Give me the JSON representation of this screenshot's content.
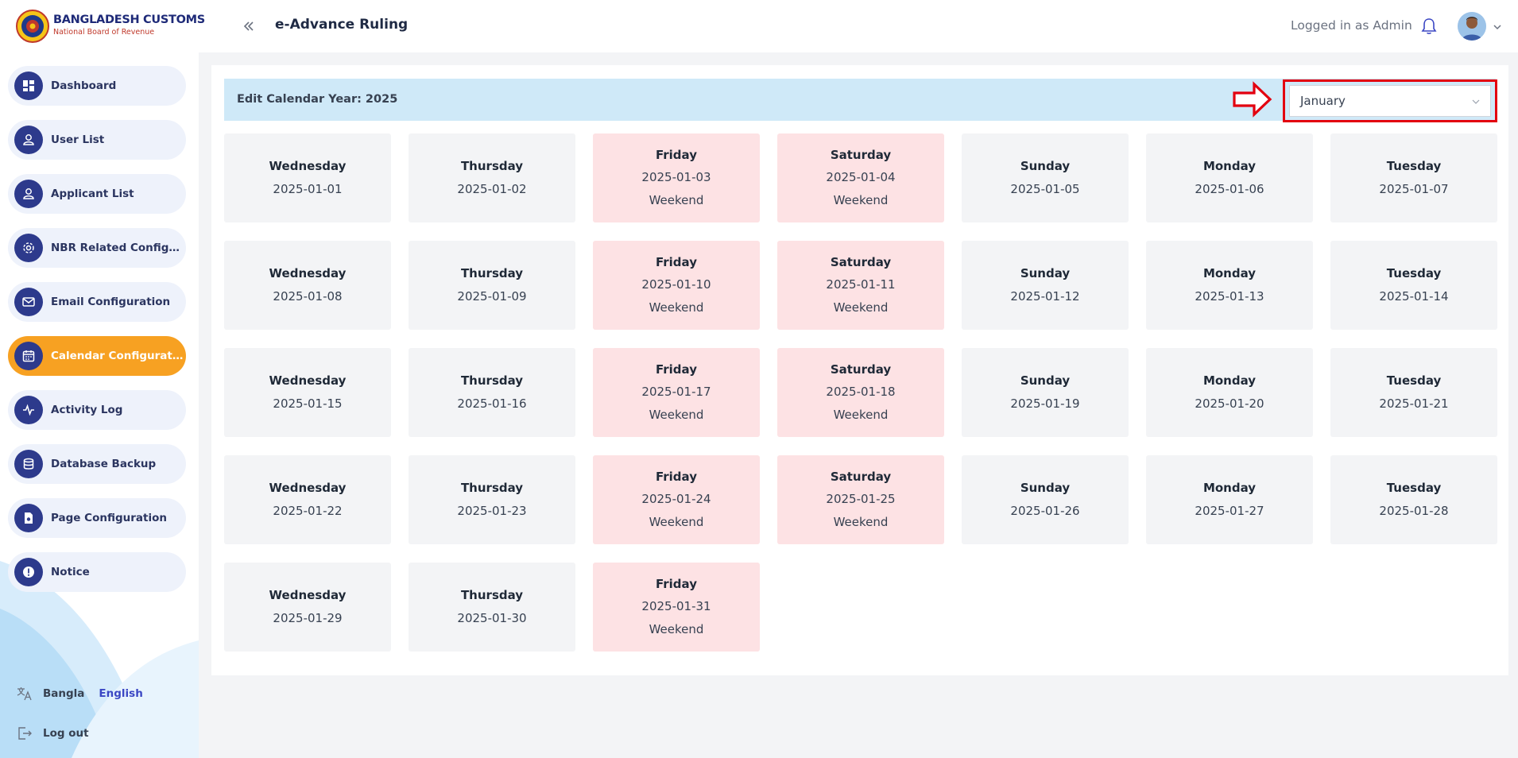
{
  "header": {
    "brand_title": "BANGLADESH CUSTOMS",
    "brand_subtitle": "National Board of Revenue",
    "app_title": "e-Advance Ruling",
    "logged_in_text": "Logged in as Admin"
  },
  "sidebar": {
    "items": [
      {
        "label": "Dashboard",
        "icon": "dashboard-icon",
        "active": false
      },
      {
        "label": "User List",
        "icon": "users-icon",
        "active": false
      },
      {
        "label": "Applicant List",
        "icon": "users-icon",
        "active": false
      },
      {
        "label": "NBR Related Configurati...",
        "icon": "gear-icon",
        "active": false
      },
      {
        "label": "Email Configuration",
        "icon": "mail-icon",
        "active": false
      },
      {
        "label": "Calendar Configuration",
        "icon": "calendar-icon",
        "active": true
      },
      {
        "label": "Activity Log",
        "icon": "activity-icon",
        "active": false
      },
      {
        "label": "Database Backup",
        "icon": "database-icon",
        "active": false
      },
      {
        "label": "Page Configuration",
        "icon": "page-icon",
        "active": false
      },
      {
        "label": "Notice",
        "icon": "alert-icon",
        "active": false
      }
    ],
    "language": {
      "bangla": "Bangla",
      "english": "English",
      "selected": "English"
    },
    "logout_label": "Log out"
  },
  "calendar": {
    "edit_title": "Edit Calendar Year: 2025",
    "selected_month": "January",
    "weekend_label": "Weekend",
    "days": [
      {
        "name": "Wednesday",
        "date": "2025-01-01",
        "weekend": false
      },
      {
        "name": "Thursday",
        "date": "2025-01-02",
        "weekend": false
      },
      {
        "name": "Friday",
        "date": "2025-01-03",
        "weekend": true
      },
      {
        "name": "Saturday",
        "date": "2025-01-04",
        "weekend": true
      },
      {
        "name": "Sunday",
        "date": "2025-01-05",
        "weekend": false
      },
      {
        "name": "Monday",
        "date": "2025-01-06",
        "weekend": false
      },
      {
        "name": "Tuesday",
        "date": "2025-01-07",
        "weekend": false
      },
      {
        "name": "Wednesday",
        "date": "2025-01-08",
        "weekend": false
      },
      {
        "name": "Thursday",
        "date": "2025-01-09",
        "weekend": false
      },
      {
        "name": "Friday",
        "date": "2025-01-10",
        "weekend": true
      },
      {
        "name": "Saturday",
        "date": "2025-01-11",
        "weekend": true
      },
      {
        "name": "Sunday",
        "date": "2025-01-12",
        "weekend": false
      },
      {
        "name": "Monday",
        "date": "2025-01-13",
        "weekend": false
      },
      {
        "name": "Tuesday",
        "date": "2025-01-14",
        "weekend": false
      },
      {
        "name": "Wednesday",
        "date": "2025-01-15",
        "weekend": false
      },
      {
        "name": "Thursday",
        "date": "2025-01-16",
        "weekend": false
      },
      {
        "name": "Friday",
        "date": "2025-01-17",
        "weekend": true
      },
      {
        "name": "Saturday",
        "date": "2025-01-18",
        "weekend": true
      },
      {
        "name": "Sunday",
        "date": "2025-01-19",
        "weekend": false
      },
      {
        "name": "Monday",
        "date": "2025-01-20",
        "weekend": false
      },
      {
        "name": "Tuesday",
        "date": "2025-01-21",
        "weekend": false
      },
      {
        "name": "Wednesday",
        "date": "2025-01-22",
        "weekend": false
      },
      {
        "name": "Thursday",
        "date": "2025-01-23",
        "weekend": false
      },
      {
        "name": "Friday",
        "date": "2025-01-24",
        "weekend": true
      },
      {
        "name": "Saturday",
        "date": "2025-01-25",
        "weekend": true
      },
      {
        "name": "Sunday",
        "date": "2025-01-26",
        "weekend": false
      },
      {
        "name": "Monday",
        "date": "2025-01-27",
        "weekend": false
      },
      {
        "name": "Tuesday",
        "date": "2025-01-28",
        "weekend": false
      },
      {
        "name": "Wednesday",
        "date": "2025-01-29",
        "weekend": false
      },
      {
        "name": "Thursday",
        "date": "2025-01-30",
        "weekend": false
      },
      {
        "name": "Friday",
        "date": "2025-01-31",
        "weekend": true
      }
    ]
  },
  "colors": {
    "accent": "#f7a122",
    "nav_icon_bg": "#2d3a8c",
    "weekend_bg": "#fde2e4",
    "weekday_bg": "#f3f4f6",
    "toolbar_bg": "#cfe9f8",
    "highlight_red": "#e3000f"
  }
}
